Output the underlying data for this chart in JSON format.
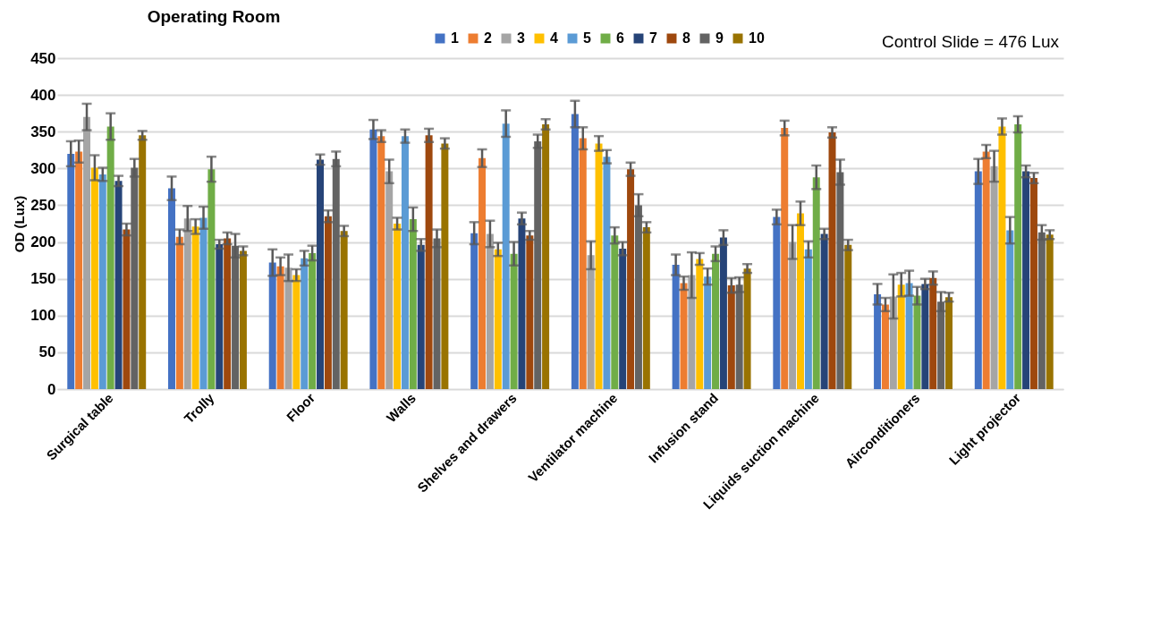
{
  "chart_data": {
    "type": "bar",
    "title": "Operating Room",
    "ylabel": "OD (Lux)",
    "annotations": [
      "Control Slide = 476 Lux"
    ],
    "categories": [
      "Surgical table",
      "Trolly",
      "Floor",
      "Walls",
      "Shelves and drawers",
      "Ventilator machine",
      "Infusion stand",
      "Liquids suction machine",
      "Airconditioners",
      "Light projector"
    ],
    "series": [
      {
        "name": "1",
        "color": "#4472c4",
        "values": [
          320,
          273,
          172,
          353,
          212,
          374,
          169,
          234,
          129,
          296
        ],
        "errors": [
          17,
          16,
          18,
          13,
          15,
          18,
          14,
          10,
          14,
          17
        ]
      },
      {
        "name": "2",
        "color": "#ed7d31",
        "values": [
          323,
          207,
          167,
          344,
          314,
          341,
          144,
          355,
          115,
          323
        ],
        "errors": [
          15,
          10,
          12,
          8,
          12,
          15,
          9,
          10,
          9,
          9
        ]
      },
      {
        "name": "3",
        "color": "#a5a5a5",
        "values": [
          370,
          232,
          165,
          296,
          211,
          182,
          155,
          200,
          126,
          303
        ],
        "errors": [
          18,
          17,
          18,
          16,
          18,
          19,
          31,
          23,
          30,
          21
        ]
      },
      {
        "name": "4",
        "color": "#ffc000",
        "values": [
          301,
          221,
          155,
          225,
          190,
          334,
          177,
          239,
          142,
          357
        ],
        "errors": [
          17,
          10,
          8,
          8,
          9,
          10,
          8,
          16,
          16,
          11
        ]
      },
      {
        "name": "5",
        "color": "#5b9bd5",
        "values": [
          292,
          233,
          178,
          344,
          361,
          316,
          153,
          190,
          144,
          216
        ],
        "errors": [
          9,
          15,
          10,
          9,
          18,
          9,
          11,
          11,
          17,
          18
        ]
      },
      {
        "name": "6",
        "color": "#70ad47",
        "values": [
          357,
          299,
          185,
          231,
          184,
          209,
          184,
          288,
          127,
          360
        ],
        "errors": [
          18,
          17,
          10,
          16,
          16,
          11,
          10,
          16,
          12,
          11
        ]
      },
      {
        "name": "7",
        "color": "#264478",
        "values": [
          283,
          197,
          312,
          196,
          232,
          191,
          206,
          211,
          143,
          296
        ],
        "errors": [
          7,
          6,
          7,
          8,
          8,
          9,
          10,
          7,
          7,
          8
        ]
      },
      {
        "name": "8",
        "color": "#9e480e",
        "values": [
          217,
          205,
          235,
          345,
          209,
          299,
          141,
          349,
          151,
          287
        ],
        "errors": [
          8,
          8,
          8,
          9,
          6,
          9,
          10,
          7,
          9,
          7
        ]
      },
      {
        "name": "9",
        "color": "#636363",
        "values": [
          301,
          195,
          313,
          205,
          337,
          250,
          142,
          295,
          119,
          213
        ],
        "errors": [
          12,
          16,
          10,
          12,
          9,
          15,
          10,
          17,
          13,
          10
        ]
      },
      {
        "name": "10",
        "color": "#997300",
        "values": [
          345,
          188,
          215,
          334,
          360,
          220,
          164,
          196,
          125,
          210
        ],
        "errors": [
          6,
          6,
          7,
          7,
          7,
          7,
          6,
          7,
          6,
          6
        ]
      }
    ],
    "ylim": [
      0,
      450
    ],
    "yticks": [
      0,
      50,
      100,
      150,
      200,
      250,
      300,
      350,
      400,
      450
    ],
    "grid": "y",
    "legend": "top"
  }
}
